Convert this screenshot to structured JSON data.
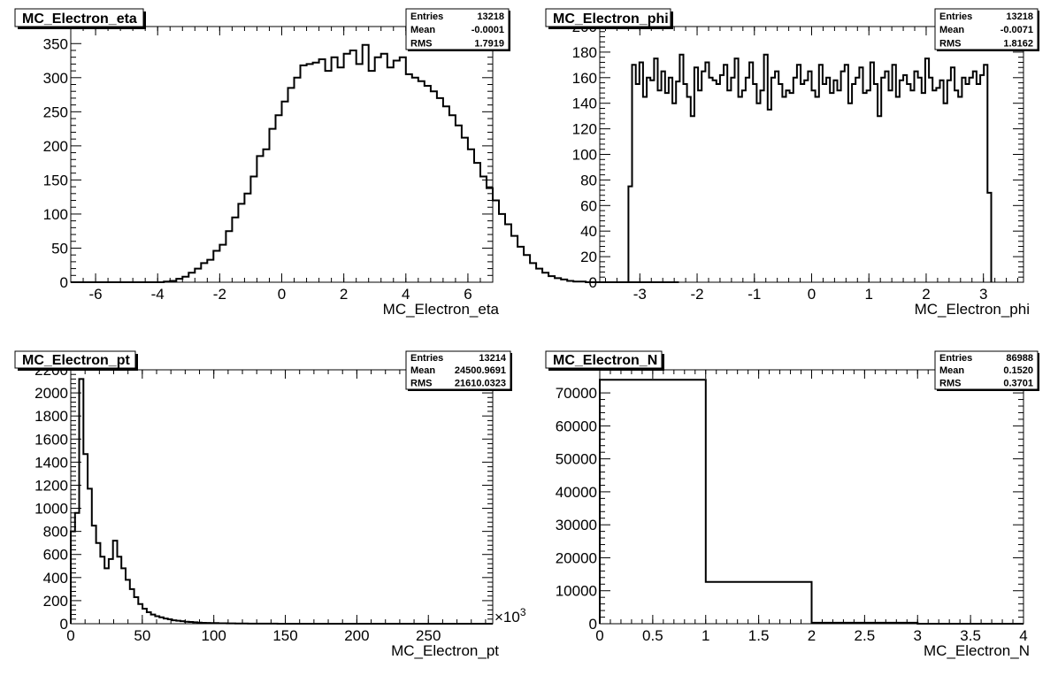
{
  "chart_data": [
    {
      "type": "bar",
      "title": "MC_Electron_eta",
      "xlabel": "MC_Electron_eta",
      "ylabel": "",
      "xlim": [
        -6.8,
        6.8
      ],
      "ylim": [
        0,
        375
      ],
      "xticks": [
        -6,
        -4,
        -2,
        0,
        2,
        4,
        6
      ],
      "yticks": [
        0,
        50,
        100,
        150,
        200,
        250,
        300,
        350
      ],
      "stats": {
        "Entries": "13218",
        "Mean": "-0.0001",
        "RMS": "1.7919"
      },
      "bin_edges_start": -6.8,
      "bin_width": 0.2,
      "values": [
        0,
        0,
        0,
        0,
        0,
        0,
        0,
        0,
        0,
        0,
        0,
        0,
        0,
        0,
        0,
        1,
        2,
        5,
        8,
        14,
        20,
        28,
        33,
        46,
        55,
        75,
        95,
        115,
        130,
        155,
        185,
        195,
        225,
        245,
        265,
        285,
        300,
        318,
        320,
        322,
        327,
        310,
        330,
        315,
        335,
        340,
        320,
        348,
        310,
        330,
        335,
        315,
        325,
        330,
        305,
        300,
        295,
        288,
        280,
        270,
        258,
        245,
        230,
        212,
        195,
        175,
        155,
        138,
        120,
        100,
        85,
        68,
        52,
        40,
        28,
        20,
        14,
        9,
        6,
        4,
        2,
        1,
        1,
        0,
        0,
        0,
        0,
        0,
        0,
        0,
        0,
        0,
        0,
        0,
        0,
        0,
        0,
        0
      ],
      "grid": false,
      "legend": "none"
    },
    {
      "type": "bar",
      "title": "MC_Electron_phi",
      "xlabel": "MC_Electron_phi",
      "ylabel": "",
      "xlim": [
        -3.7,
        3.7
      ],
      "ylim": [
        0,
        200
      ],
      "xticks": [
        -3,
        -2,
        -1,
        0,
        1,
        2,
        3
      ],
      "yticks": [
        0,
        20,
        40,
        60,
        80,
        100,
        120,
        140,
        160,
        180,
        200
      ],
      "stats": {
        "Entries": "13218",
        "Mean": "-0.0071",
        "RMS": "1.8162"
      },
      "bin_edges_start": -3.2,
      "bin_width": 0.064,
      "values": [
        75,
        170,
        155,
        172,
        145,
        160,
        158,
        175,
        150,
        165,
        148,
        160,
        140,
        157,
        178,
        155,
        145,
        130,
        168,
        150,
        165,
        172,
        160,
        158,
        155,
        162,
        170,
        150,
        160,
        175,
        145,
        150,
        160,
        172,
        155,
        140,
        150,
        178,
        135,
        160,
        165,
        155,
        145,
        150,
        148,
        160,
        170,
        155,
        158,
        165,
        150,
        145,
        170,
        155,
        160,
        148,
        158,
        150,
        165,
        170,
        140,
        155,
        160,
        168,
        148,
        150,
        172,
        155,
        130,
        160,
        165,
        150,
        170,
        145,
        158,
        162,
        155,
        150,
        165,
        160,
        148,
        175,
        160,
        150,
        152,
        158,
        140,
        158,
        168,
        150,
        145,
        160,
        155,
        160,
        165,
        155,
        162,
        170,
        70
      ],
      "grid": false,
      "legend": "none"
    },
    {
      "type": "bar",
      "title": "MC_Electron_pt",
      "xlabel": "MC_Electron_pt",
      "ylabel": "",
      "x_multiplier": "×10",
      "x_multiplier_exp": "3",
      "xlim": [
        0,
        295
      ],
      "ylim": [
        0,
        2200
      ],
      "xticks": [
        0,
        50,
        100,
        150,
        200,
        250
      ],
      "yticks": [
        0,
        200,
        400,
        600,
        800,
        1000,
        1200,
        1400,
        1600,
        1800,
        2000,
        2200
      ],
      "stats": {
        "Entries": "13214",
        "Mean": "24500.9691",
        "RMS": "21610.0323"
      },
      "bin_edges_start": 0,
      "bin_width": 2.95,
      "values": [
        800,
        960,
        2120,
        1470,
        1170,
        850,
        700,
        580,
        480,
        560,
        720,
        580,
        480,
        380,
        300,
        230,
        170,
        130,
        100,
        80,
        65,
        55,
        45,
        38,
        30,
        26,
        22,
        18,
        15,
        12,
        10,
        8,
        7,
        6,
        5,
        4,
        4,
        3,
        3,
        2,
        2,
        2,
        1,
        1,
        1,
        1,
        1,
        1,
        1,
        0,
        0,
        0,
        0,
        0,
        0,
        0,
        0,
        0,
        0,
        0,
        0,
        0,
        0,
        0,
        0,
        0,
        0,
        0,
        0,
        0,
        0,
        0,
        0,
        0,
        0,
        0,
        0,
        0,
        0,
        0,
        0,
        0,
        0,
        0,
        0,
        0,
        0,
        0,
        0,
        0,
        0,
        0,
        0,
        0,
        0,
        0,
        0,
        0,
        0,
        0
      ],
      "grid": false,
      "legend": "none"
    },
    {
      "type": "bar",
      "title": "MC_Electron_N",
      "xlabel": "MC_Electron_N",
      "ylabel": "",
      "xlim": [
        0,
        4
      ],
      "ylim": [
        0,
        77000
      ],
      "xticks": [
        0,
        0.5,
        1,
        1.5,
        2,
        2.5,
        3,
        3.5,
        4
      ],
      "xtick_labels": [
        "0",
        "0.5",
        "1",
        "1.5",
        "2",
        "2.5",
        "3",
        "3.5",
        "4"
      ],
      "yticks": [
        0,
        10000,
        20000,
        30000,
        40000,
        50000,
        60000,
        70000
      ],
      "stats": {
        "Entries": "86988",
        "Mean": "0.1520",
        "RMS": "0.3701"
      },
      "bin_edges_start": 0,
      "bin_width": 1,
      "values": [
        74000,
        12700,
        300,
        0
      ],
      "grid": false,
      "legend": "none"
    }
  ]
}
